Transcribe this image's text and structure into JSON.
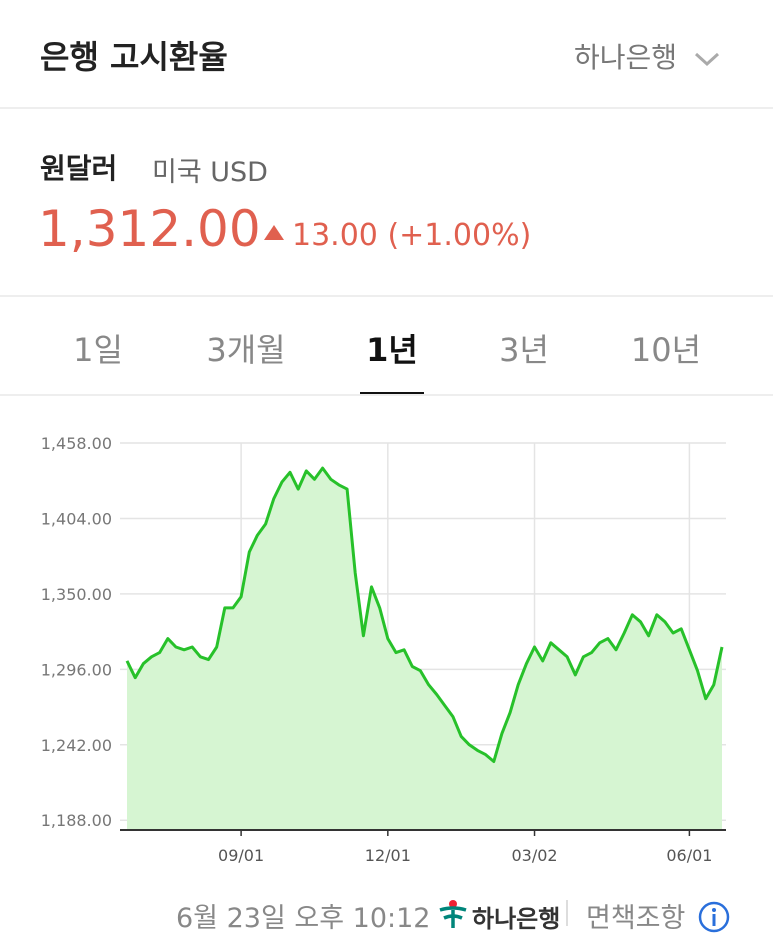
{
  "header": {
    "title": "은행 고시환율",
    "bank": "하나은행"
  },
  "currency": {
    "name": "원달러",
    "desc": "미국 USD"
  },
  "price": {
    "value": "1,312.00",
    "change": "13.00",
    "percent": "(+1.00%)"
  },
  "tabs": [
    "1일",
    "3개월",
    "1년",
    "3년",
    "10년"
  ],
  "active_tab": 2,
  "chart_data": {
    "type": "line",
    "color": "#27c12a",
    "fill": "#d6f5d2",
    "grid": true,
    "categories": [
      null,
      null,
      null,
      null,
      null,
      null,
      null,
      null,
      null,
      null,
      null,
      null,
      null,
      null,
      "09/01",
      null,
      null,
      null,
      null,
      null,
      null,
      null,
      null,
      null,
      null,
      null,
      null,
      null,
      null,
      null,
      null,
      null,
      "12/01",
      null,
      null,
      null,
      null,
      null,
      null,
      null,
      null,
      null,
      null,
      null,
      null,
      null,
      null,
      null,
      null,
      null,
      "03/02",
      null,
      null,
      null,
      null,
      null,
      null,
      null,
      null,
      null,
      null,
      null,
      null,
      null,
      null,
      null,
      null,
      null,
      null,
      "06/01",
      null,
      null,
      null,
      null
    ],
    "values": [
      1302,
      1290,
      1300,
      1305,
      1308,
      1318,
      1312,
      1310,
      1312,
      1305,
      1303,
      1312,
      1340,
      1340,
      1348,
      1380,
      1392,
      1400,
      1418,
      1430,
      1437,
      1425,
      1438,
      1432,
      1440,
      1432,
      1428,
      1425,
      1365,
      1320,
      1355,
      1340,
      1318,
      1308,
      1310,
      1298,
      1295,
      1285,
      1278,
      1270,
      1262,
      1248,
      1242,
      1238,
      1235,
      1230,
      1250,
      1265,
      1285,
      1300,
      1312,
      1302,
      1315,
      1310,
      1305,
      1292,
      1305,
      1308,
      1315,
      1318,
      1310,
      1322,
      1335,
      1330,
      1320,
      1335,
      1330,
      1322,
      1325,
      1310,
      1295,
      1275,
      1285,
      1312
    ],
    "ylim": [
      1181,
      1458
    ],
    "yticks": [
      {
        "value": 1188,
        "label": "1,188.00"
      },
      {
        "value": 1242,
        "label": "1,242.00"
      },
      {
        "value": 1296,
        "label": "1,296.00"
      },
      {
        "value": 1350,
        "label": "1,350.00"
      },
      {
        "value": 1404,
        "label": "1,404.00"
      },
      {
        "value": 1458,
        "label": "1,458.00"
      }
    ]
  },
  "footer": {
    "timestamp": "6월 23일 오후 10:12",
    "logo": "하나은행",
    "disclaimer": "면책조항"
  }
}
